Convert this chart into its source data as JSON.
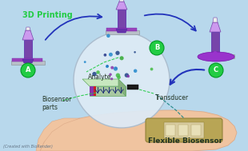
{
  "bg_color": "#b8d8ec",
  "title_text": "3D Printing",
  "label_A": "A",
  "label_B": "B",
  "label_C": "C",
  "label_analyte": "Analyte",
  "label_biosensor": "Biosensor\nparts",
  "label_transducer": "Transducer",
  "label_flexible": "Flexible Biosensor",
  "label_credit": "(Created with BioRender)",
  "green_color": "#22cc44",
  "purple_dark": "#7744aa",
  "purple_light": "#cc99ee",
  "purple_ink": "#9955bb",
  "arrow_color": "#2233bb",
  "dashed_color": "#33dd33",
  "hand_color": "#f0c4a0",
  "hand_edge": "#ddaa88",
  "bandage_color": "#b8a555",
  "bandage_edge": "#8a7a30",
  "circle_bg": "#ddeaf5",
  "circle_edge": "#aabbcc",
  "platform_top": "#c8e0c0",
  "platform_side": "#a0c098",
  "platform_bottom": "#88aa80",
  "gray_base": "#b8c0c8",
  "gray_base_edge": "#909aa0",
  "text_dark": "#223322",
  "text_credit": "#667788"
}
